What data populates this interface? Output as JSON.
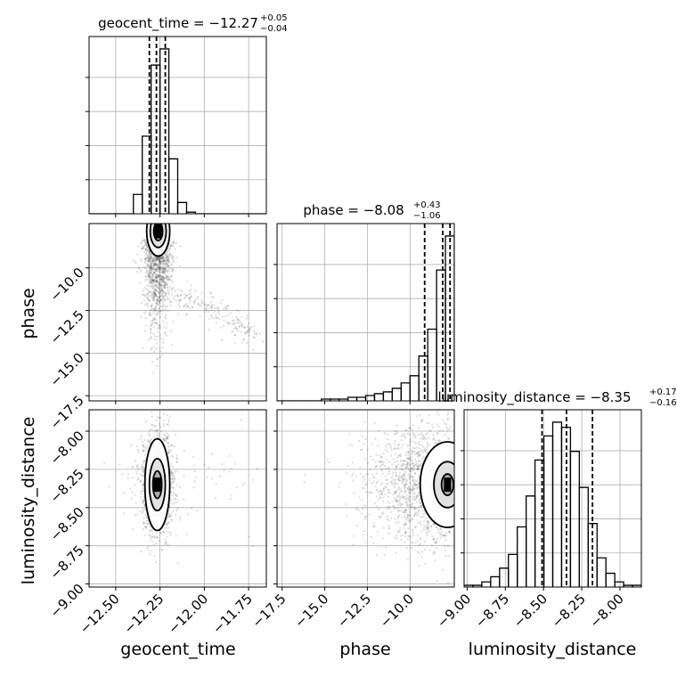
{
  "chart_data": {
    "type": "corner",
    "parameters": [
      "geocent_time",
      "phase",
      "luminosity_distance"
    ],
    "titles": [
      {
        "name": "geocent_time",
        "prefix": "geocent_time = ",
        "median": "−12.27",
        "plus": "+0.05",
        "minus": "−0.04"
      },
      {
        "name": "phase",
        "prefix": "phase = ",
        "median": "−8.08",
        "plus": "+0.43",
        "minus": "−1.06"
      },
      {
        "name": "luminosity_distance",
        "prefix": "luminosity_distance = ",
        "median": "−8.35",
        "plus": "+0.17",
        "minus": "−0.16"
      }
    ],
    "ranges": {
      "geocent_time": [
        -12.65,
        -11.65
      ],
      "phase": [
        -17.8,
        -7.4
      ],
      "luminosity_distance": [
        -9.02,
        -7.86
      ]
    },
    "ticks": {
      "geocent_time": {
        "values": [
          -12.5,
          -12.25,
          -12.0,
          -11.75
        ],
        "labels": [
          "−12.50",
          "−12.25",
          "−12.00",
          "−11.75"
        ]
      },
      "phase": {
        "values": [
          -17.5,
          -15.0,
          -12.5,
          -10.0
        ],
        "labels": [
          "−17.5",
          "−15.0",
          "−12.5",
          "−10.0"
        ]
      },
      "luminosity_distance": {
        "values": [
          -9.0,
          -8.75,
          -8.5,
          -8.25,
          -8.0
        ],
        "labels": [
          "−9.00",
          "−8.75",
          "−8.50",
          "−8.25",
          "−8.00"
        ]
      }
    },
    "axis_labels": {
      "x": [
        "geocent_time",
        "phase",
        "luminosity_distance"
      ],
      "y": [
        "phase",
        "luminosity_distance"
      ]
    },
    "quantile_lines": {
      "geocent_time": [
        -12.31,
        -12.27,
        -12.22
      ],
      "phase": [
        -9.14,
        -8.08,
        -7.65
      ],
      "luminosity_distance": [
        -8.51,
        -8.35,
        -8.18
      ]
    },
    "histograms": {
      "geocent_time": {
        "bin_edges": [
          -12.65,
          -12.6,
          -12.55,
          -12.5,
          -12.45,
          -12.4,
          -12.35,
          -12.3,
          -12.25,
          -12.2,
          -12.15,
          -12.1,
          -12.05,
          -12.0,
          -11.95,
          -11.9,
          -11.85,
          -11.8,
          -11.75,
          -11.7,
          -11.65
        ],
        "counts": [
          0,
          0,
          0,
          0,
          0,
          12,
          48,
          92,
          102,
          34,
          7,
          1,
          0,
          0,
          0,
          0,
          0,
          0,
          0,
          0
        ]
      },
      "phase": {
        "bin_edges": [
          -17.8,
          -17.28,
          -16.76,
          -16.24,
          -15.72,
          -15.2,
          -14.68,
          -14.16,
          -13.64,
          -13.12,
          -12.6,
          -12.08,
          -11.56,
          -11.04,
          -10.52,
          -10.0,
          -9.48,
          -8.96,
          -8.44,
          -7.92,
          -7.4
        ],
        "counts": [
          0,
          0,
          0,
          0,
          0,
          1,
          1,
          1,
          2,
          2,
          3,
          4,
          5,
          7,
          10,
          14,
          25,
          40,
          73,
          92
        ]
      },
      "luminosity_distance": {
        "bin_edges": [
          -9.02,
          -8.962,
          -8.904,
          -8.846,
          -8.788,
          -8.73,
          -8.672,
          -8.614,
          -8.556,
          -8.498,
          -8.44,
          -8.382,
          -8.324,
          -8.266,
          -8.208,
          -8.15,
          -8.092,
          -8.034,
          -7.976,
          -7.918,
          -7.86
        ],
        "counts": [
          1,
          1,
          3,
          6,
          11,
          19,
          35,
          53,
          74,
          88,
          96,
          93,
          79,
          58,
          37,
          17,
          8,
          3,
          1,
          1
        ]
      }
    },
    "contours_2d": [
      {
        "x": "geocent_time",
        "y": "phase",
        "center": [
          -12.26,
          -7.85
        ],
        "levels_sigma": [
          [
            0.025,
            0.55
          ],
          [
            0.045,
            0.95
          ],
          [
            0.065,
            1.45
          ]
        ]
      },
      {
        "x": "geocent_time",
        "y": "luminosity_distance",
        "center": [
          -12.265,
          -8.35
        ],
        "levels_sigma": [
          [
            0.025,
            0.09
          ],
          [
            0.045,
            0.17
          ],
          [
            0.07,
            0.3
          ]
        ]
      },
      {
        "x": "phase",
        "y": "luminosity_distance",
        "center": [
          -7.8,
          -8.35
        ],
        "levels_sigma": [
          [
            0.35,
            0.07
          ],
          [
            0.8,
            0.15
          ],
          [
            1.6,
            0.28
          ]
        ]
      }
    ],
    "grid": true
  }
}
